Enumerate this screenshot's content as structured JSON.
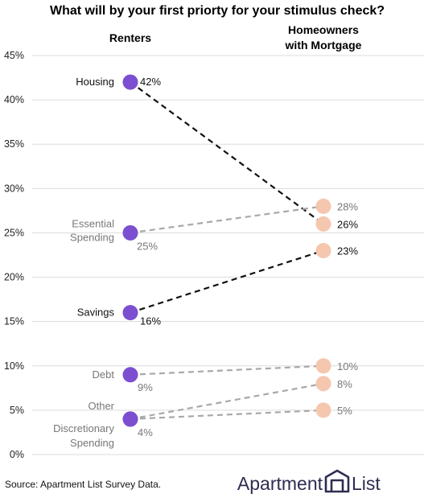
{
  "chart_data": {
    "type": "line",
    "title": "What will by your first priorty for your stimulus check?",
    "x": [
      "Renters",
      "Homeowners with Mortgage"
    ],
    "x_display": [
      [
        "Renters"
      ],
      [
        "Homeowners",
        "with Mortgage"
      ]
    ],
    "ylim": [
      0,
      45
    ],
    "yticks": [
      "0%",
      "5%",
      "10%",
      "15%",
      "20%",
      "25%",
      "30%",
      "35%",
      "40%",
      "45%"
    ],
    "grid": true,
    "series": [
      {
        "name": "Housing",
        "label_lines": [
          "Housing"
        ],
        "values": [
          42,
          26
        ],
        "value_labels": [
          "42%",
          "26%"
        ],
        "highlight": true
      },
      {
        "name": "Essential Spending",
        "label_lines": [
          "Essential",
          "Spending"
        ],
        "values": [
          25,
          28
        ],
        "value_labels": [
          "25%",
          "28%"
        ],
        "highlight": false
      },
      {
        "name": "Savings",
        "label_lines": [
          "Savings"
        ],
        "values": [
          16,
          23
        ],
        "value_labels": [
          "16%",
          "23%"
        ],
        "highlight": true
      },
      {
        "name": "Debt",
        "label_lines": [
          "Debt"
        ],
        "values": [
          9,
          10
        ],
        "value_labels": [
          "9%",
          "10%"
        ],
        "highlight": false
      },
      {
        "name": "Other",
        "label_lines": [
          "Other"
        ],
        "values": [
          4,
          8
        ],
        "value_labels": [
          "",
          "8%"
        ],
        "highlight": false
      },
      {
        "name": "Discretionary Spending",
        "label_lines": [
          "Discretionary",
          "Spending"
        ],
        "values": [
          4,
          5
        ],
        "value_labels": [
          "4%",
          "5%"
        ],
        "highlight": false
      }
    ],
    "colors": {
      "renters_dot": "#7b4fd0",
      "homeowners_dot": "#f4c7ae",
      "highlight_line": "#111111",
      "muted_line": "#a8a8a8"
    }
  },
  "source": "Source: Apartment List Survey Data.",
  "brand": {
    "name_left": "Apartment",
    "name_right": "List",
    "logo_icon": "apartment-list-logo-icon",
    "color": "#2d2d52"
  }
}
